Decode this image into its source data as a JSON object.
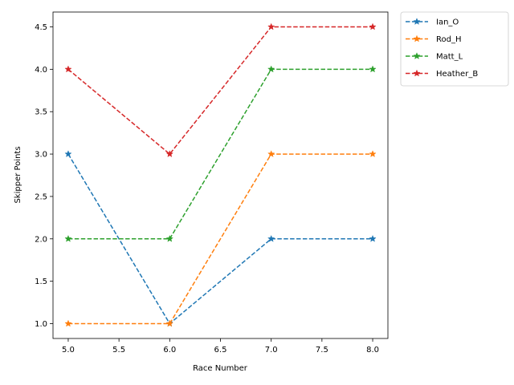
{
  "chart_data": {
    "type": "line",
    "title": "",
    "xlabel": "Race Number",
    "ylabel": "Skipper Points",
    "x": [
      5,
      6,
      7,
      8
    ],
    "xlim": [
      4.85,
      8.15
    ],
    "ylim": [
      0.825,
      4.675
    ],
    "xticks": [
      "5.0",
      "5.5",
      "6.0",
      "6.5",
      "7.0",
      "7.5",
      "8.0"
    ],
    "yticks": [
      "1.0",
      "1.5",
      "2.0",
      "2.5",
      "3.0",
      "3.5",
      "4.0",
      "4.5"
    ],
    "grid": false,
    "legend_position": "outside-top-right",
    "line_style": "dashed",
    "marker": "star",
    "series": [
      {
        "name": "Ian_O",
        "color": "#1f77b4",
        "values": [
          3,
          1,
          2,
          2
        ]
      },
      {
        "name": "Rod_H",
        "color": "#ff7f0e",
        "values": [
          1,
          1,
          3,
          3
        ]
      },
      {
        "name": "Matt_L",
        "color": "#2ca02c",
        "values": [
          2,
          2,
          4,
          4
        ]
      },
      {
        "name": "Heather_B",
        "color": "#d62728",
        "values": [
          4,
          3,
          4.5,
          4.5
        ]
      }
    ]
  }
}
